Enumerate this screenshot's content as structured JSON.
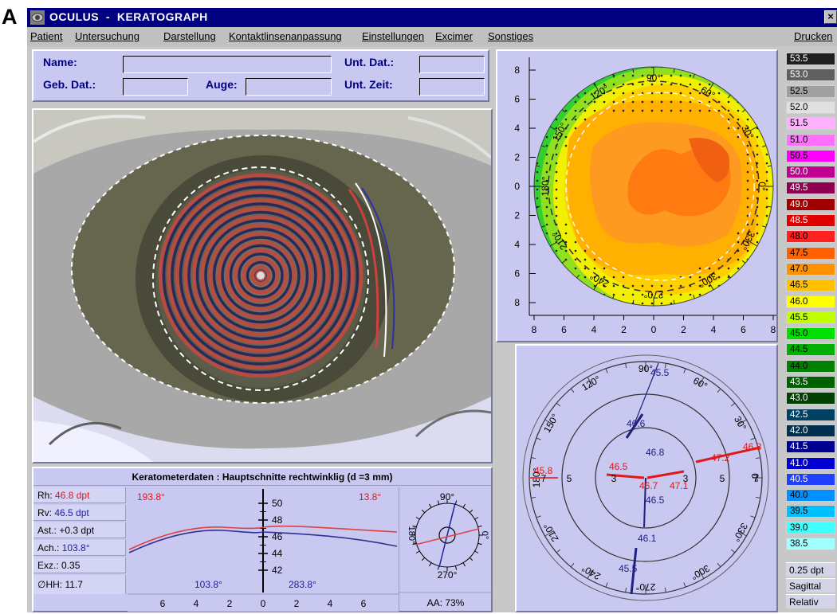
{
  "figure_letter": "A",
  "window": {
    "title": "OCULUS  -  KERATOGRAPH",
    "close_label": "×"
  },
  "menu": {
    "items": [
      "Patient",
      "Untersuchung",
      "Darstellung",
      "Kontaktlinsenanpassung",
      "Einstellungen",
      "Excimer",
      "Sonstiges"
    ],
    "right_item": "Drucken"
  },
  "patient": {
    "name_label": "Name:",
    "name_value": "",
    "birth_label": "Geb. Dat.:",
    "birth_value": "",
    "eye_label": "Auge:",
    "eye_value": "",
    "exam_date_label": "Unt. Dat.:",
    "exam_date_value": "",
    "exam_time_label": "Unt. Zeit:",
    "exam_time_value": ""
  },
  "keratometry": {
    "title": "Keratometerdaten : Hauptschnitte rechtwinklig (d =3 mm)",
    "rh_label": "Rh:",
    "rh_value": "46.8 dpt",
    "rv_label": "Rv:",
    "rv_value": "46.5 dpt",
    "ast": "Ast.: +0.3 dpt",
    "ach_label": "Ach.:",
    "ach_value": "103.8°",
    "exz": "Exz.: 0.35",
    "hh": "∅HH: 11.7",
    "profile_left_angle": "193.8°",
    "profile_right_angle": "13.8°",
    "profile_bottom_left_angle": "103.8°",
    "profile_bottom_right_angle": "283.8°",
    "y_ticks": [
      "50",
      "48",
      "46",
      "44",
      "42"
    ],
    "x_ticks": [
      "6",
      "4",
      "2",
      "0",
      "2",
      "4",
      "6"
    ],
    "compass_top": "90°",
    "compass_right": "0°",
    "compass_left": "180°",
    "compass_bottom": "270°",
    "aa": "AA: 73%"
  },
  "topo_map": {
    "y_ticks": [
      "8",
      "6",
      "4",
      "2",
      "0",
      "2",
      "4",
      "6",
      "8"
    ],
    "x_ticks": [
      "8",
      "6",
      "4",
      "2",
      "0",
      "2",
      "4",
      "6",
      "8"
    ],
    "angle_labels": [
      "90°",
      "60°",
      "30°",
      "0°",
      "330°",
      "300°",
      "270°",
      "240°",
      "210°",
      "180°",
      "150°",
      "120°"
    ]
  },
  "radial_chart": {
    "angle_labels": [
      "90°",
      "60°",
      "30°",
      "0°",
      "330°",
      "300°",
      "270°",
      "240°",
      "210°",
      "180°",
      "150°",
      "120°"
    ],
    "ring_labels_left": [
      "7",
      "5",
      "3"
    ],
    "ring_labels_right": [
      "3",
      "5",
      "7"
    ],
    "vertical_values": [
      {
        "value": "45.5",
        "color": "#202080"
      },
      {
        "value": "46.6",
        "color": "#202080"
      },
      {
        "value": "46.8",
        "color": "#202080"
      },
      {
        "value": "46.5",
        "color": "#202080"
      },
      {
        "value": "46.1",
        "color": "#202080"
      },
      {
        "value": "45.5",
        "color": "#202080"
      }
    ],
    "horizontal_values": [
      {
        "value": "45.8",
        "color": "#e01818"
      },
      {
        "value": "46.5",
        "color": "#e01818"
      },
      {
        "value": "46.7",
        "color": "#e01818"
      },
      {
        "value": "47.1",
        "color": "#e01818"
      },
      {
        "value": "47.2",
        "color": "#e01818"
      },
      {
        "value": "46.8",
        "color": "#e01818"
      }
    ]
  },
  "color_scale": {
    "entries": [
      {
        "value": "53.5",
        "color": "#202020",
        "text": "#ffffff"
      },
      {
        "value": "53.0",
        "color": "#606060",
        "text": "#ffffff"
      },
      {
        "value": "52.5",
        "color": "#a0a0a0",
        "text": "#000000"
      },
      {
        "value": "52.0",
        "color": "#e0e0e0",
        "text": "#000000"
      },
      {
        "value": "51.5",
        "color": "#ffb0ff",
        "text": "#000000"
      },
      {
        "value": "51.0",
        "color": "#ff70ff",
        "text": "#000000"
      },
      {
        "value": "50.5",
        "color": "#ff00ff",
        "text": "#000000"
      },
      {
        "value": "50.0",
        "color": "#c00090",
        "text": "#ffffff"
      },
      {
        "value": "49.5",
        "color": "#900050",
        "text": "#ffffff"
      },
      {
        "value": "49.0",
        "color": "#a00000",
        "text": "#ffffff"
      },
      {
        "value": "48.5",
        "color": "#e00000",
        "text": "#ffffff"
      },
      {
        "value": "48.0",
        "color": "#ff2020",
        "text": "#000000"
      },
      {
        "value": "47.5",
        "color": "#ff6000",
        "text": "#000000"
      },
      {
        "value": "47.0",
        "color": "#ff9000",
        "text": "#000000"
      },
      {
        "value": "46.5",
        "color": "#ffc000",
        "text": "#000000"
      },
      {
        "value": "46.0",
        "color": "#ffff00",
        "text": "#000000"
      },
      {
        "value": "45.5",
        "color": "#c0ff00",
        "text": "#000000"
      },
      {
        "value": "45.0",
        "color": "#00e000",
        "text": "#000000"
      },
      {
        "value": "44.5",
        "color": "#00b000",
        "text": "#000000"
      },
      {
        "value": "44.0",
        "color": "#008000",
        "text": "#000000"
      },
      {
        "value": "43.5",
        "color": "#006000",
        "text": "#ffffff"
      },
      {
        "value": "43.0",
        "color": "#004000",
        "text": "#ffffff"
      },
      {
        "value": "42.5",
        "color": "#004060",
        "text": "#ffffff"
      },
      {
        "value": "42.0",
        "color": "#003050",
        "text": "#ffffff"
      },
      {
        "value": "41.5",
        "color": "#000090",
        "text": "#ffffff"
      },
      {
        "value": "41.0",
        "color": "#0000d0",
        "text": "#ffffff"
      },
      {
        "value": "40.5",
        "color": "#2040ff",
        "text": "#ffffff"
      },
      {
        "value": "40.0",
        "color": "#0090ff",
        "text": "#000000"
      },
      {
        "value": "39.5",
        "color": "#00c0ff",
        "text": "#000000"
      },
      {
        "value": "39.0",
        "color": "#40ffff",
        "text": "#000000"
      },
      {
        "value": "38.5",
        "color": "#a0ffff",
        "text": "#000000"
      }
    ],
    "step_label": "0.25 dpt",
    "mode_label": "Sagittal",
    "scale_label": "Relativ"
  }
}
